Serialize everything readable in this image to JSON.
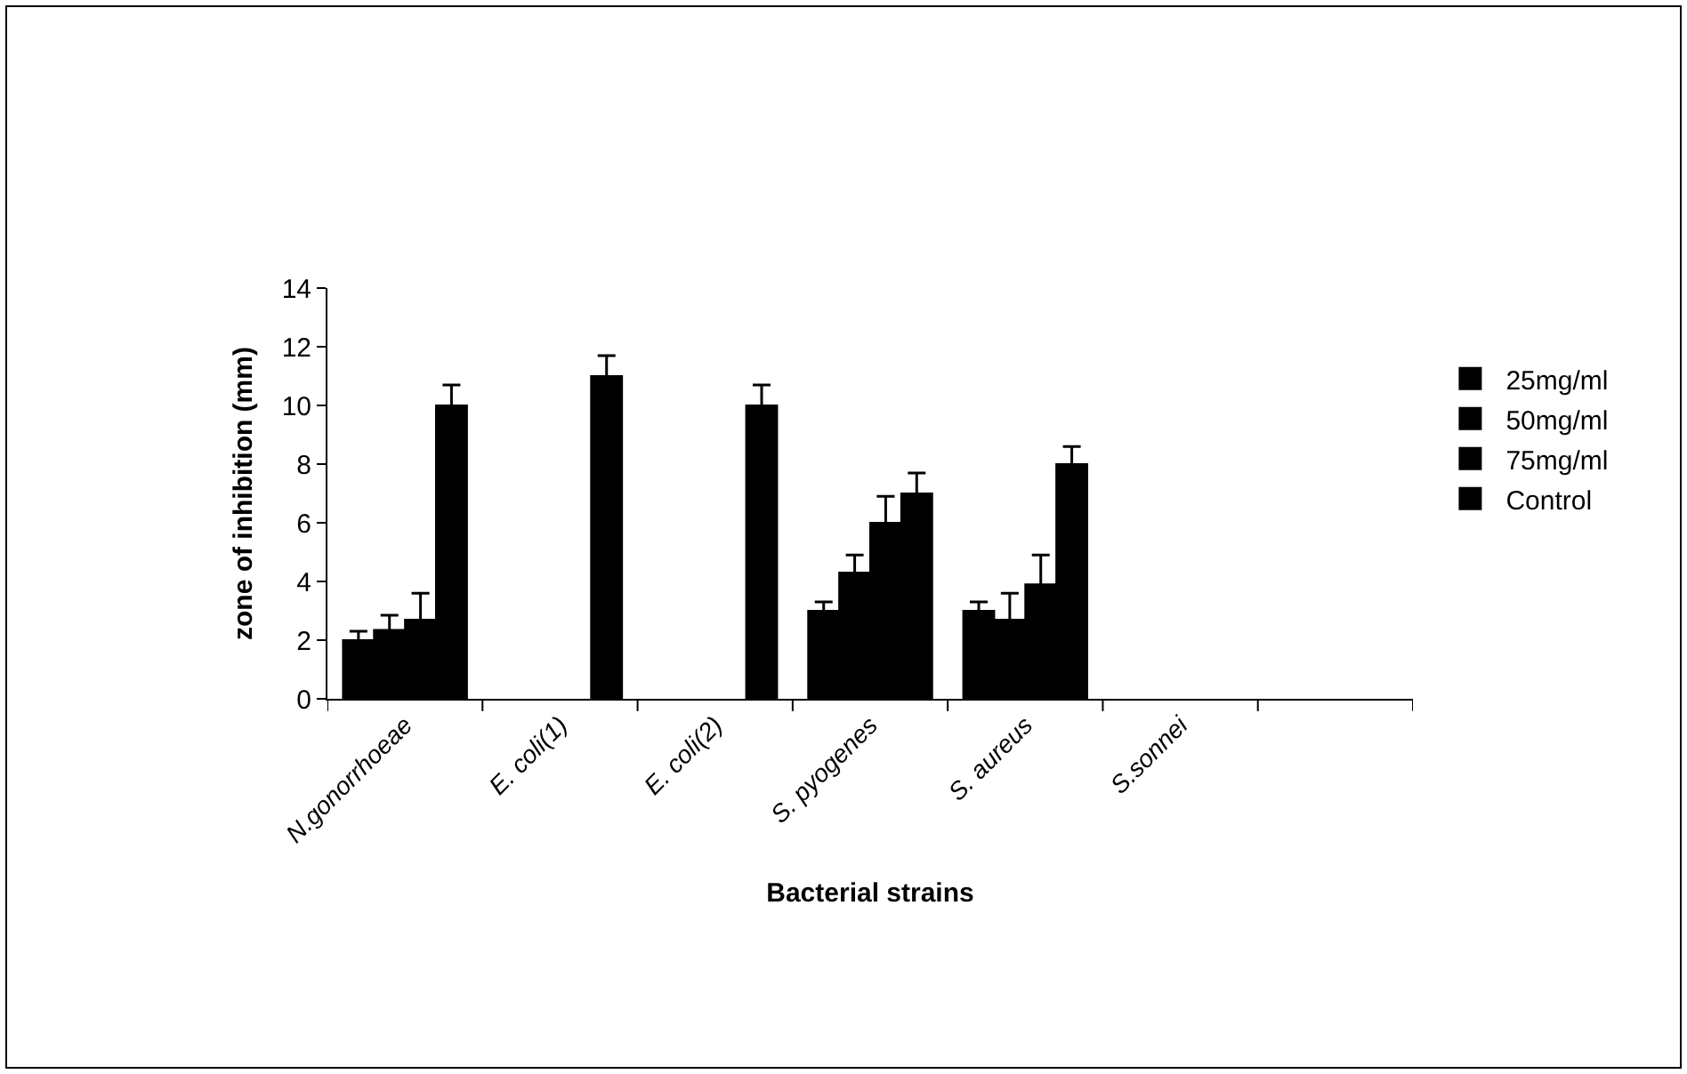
{
  "chart_data": {
    "type": "bar",
    "xlabel": "Bacterial strains",
    "ylabel": "zone of inhibition (mm)",
    "categories": [
      "N.gonorrhoeae",
      "E. coli(1)",
      "E. coli(2)",
      "S. pyogenes",
      "S. aureus",
      "S.sonnei",
      null
    ],
    "series": [
      {
        "name": "25mg/ml",
        "color": "#000000",
        "values": [
          2.0,
          null,
          null,
          3.0,
          3.0,
          null,
          null
        ],
        "errors": [
          0.3,
          null,
          null,
          0.3,
          0.3,
          null,
          null
        ]
      },
      {
        "name": "50mg/ml",
        "color": "#000000",
        "values": [
          2.35,
          null,
          null,
          4.3,
          2.7,
          null,
          null
        ],
        "errors": [
          0.5,
          null,
          null,
          0.6,
          0.9,
          null,
          null
        ]
      },
      {
        "name": "75mg/ml",
        "color": "#000000",
        "values": [
          2.7,
          null,
          null,
          6.0,
          3.9,
          null,
          null
        ],
        "errors": [
          0.9,
          null,
          null,
          0.9,
          1.0,
          null,
          null
        ]
      },
      {
        "name": "Control",
        "color": "#000000",
        "values": [
          10,
          11,
          10,
          7,
          8,
          null,
          null
        ],
        "errors": [
          0.7,
          0.7,
          0.7,
          0.7,
          0.6,
          null,
          null
        ]
      }
    ],
    "ylim": [
      0,
      14
    ],
    "yticks": [
      0,
      2,
      4,
      6,
      8,
      10,
      12,
      14
    ],
    "grid": false,
    "legend": "right"
  }
}
